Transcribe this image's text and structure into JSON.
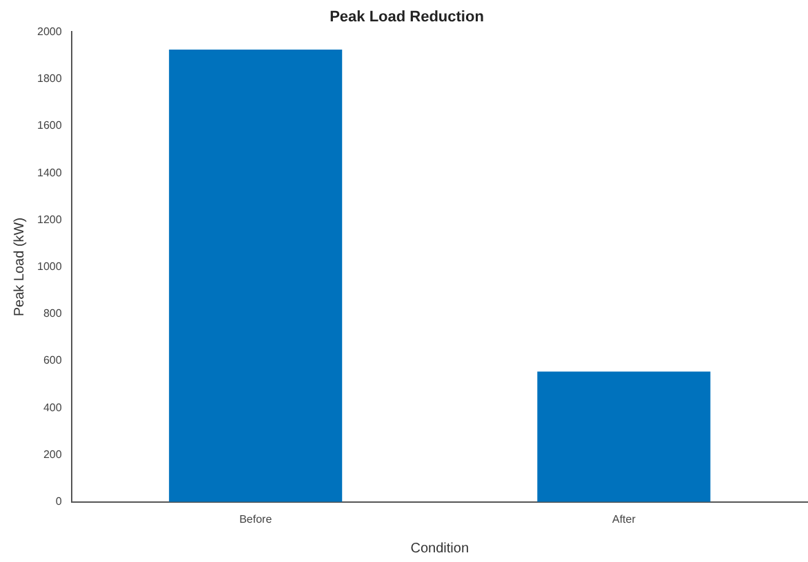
{
  "chart_data": {
    "type": "bar",
    "title": "Peak Load Reduction",
    "xlabel": "Condition",
    "ylabel": "Peak Load (kW)",
    "categories": [
      "Before",
      "After"
    ],
    "values": [
      1925,
      555
    ],
    "color": "#0072bd",
    "ylim": [
      0,
      2000
    ],
    "yticks": [
      0,
      200,
      400,
      600,
      800,
      1000,
      1200,
      1400,
      1600,
      1800,
      2000
    ],
    "grid": false,
    "legend": false
  }
}
